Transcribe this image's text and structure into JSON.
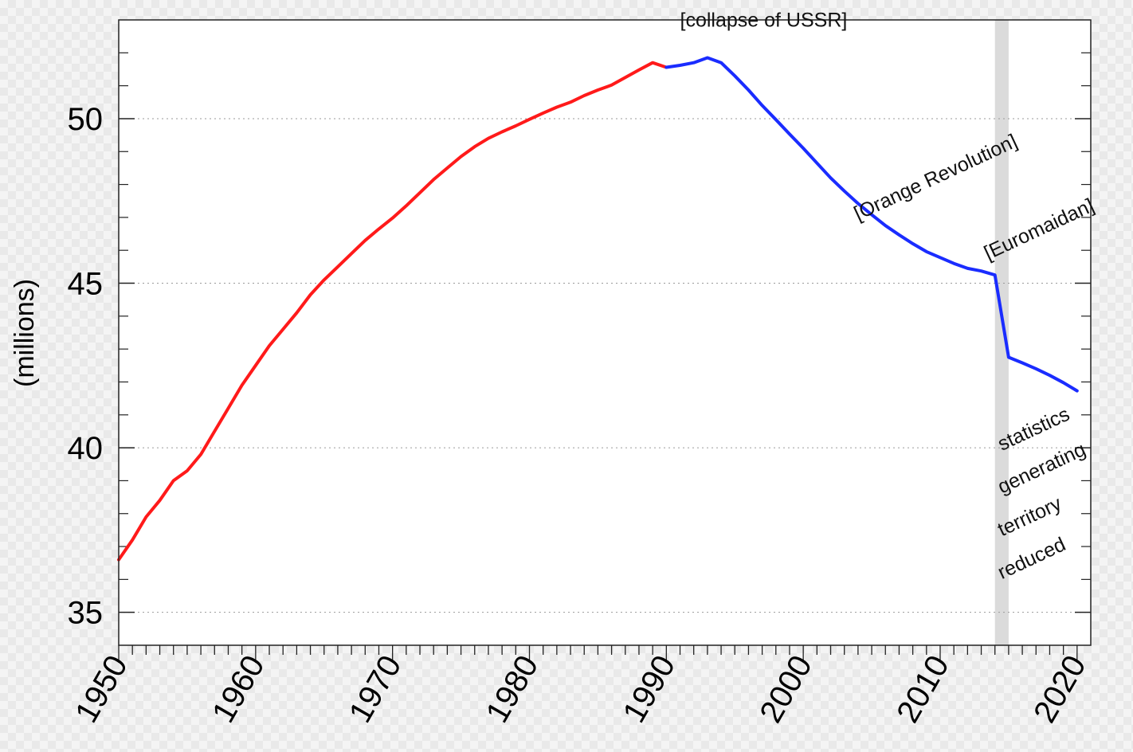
{
  "chart_data": {
    "type": "line",
    "ylabel": "(millions)",
    "xlabel": "",
    "title": "",
    "xlim": [
      1950,
      2021
    ],
    "ylim": [
      34,
      53
    ],
    "grid": "horizontal dotted at 35, 40, 45, 50",
    "x_ticks": [
      "1950",
      "1960",
      "1970",
      "1980",
      "1990",
      "2000",
      "2010",
      "2020"
    ],
    "y_ticks": [
      "35",
      "40",
      "45",
      "50"
    ],
    "colors": {
      "before_1989": "#ff1a1a",
      "after_1989": "#1a2cff",
      "shade": "#cccccc"
    },
    "series": [
      {
        "color": "#ff1a1a",
        "x": [
          1950,
          1951,
          1952,
          1953,
          1954,
          1955,
          1956,
          1957,
          1958,
          1959,
          1960,
          1961,
          1962,
          1963,
          1964,
          1965,
          1966,
          1967,
          1968,
          1969,
          1970,
          1971,
          1972,
          1973,
          1974,
          1975,
          1976,
          1977,
          1978,
          1979,
          1980,
          1981,
          1982,
          1983,
          1984,
          1985,
          1986,
          1987,
          1988,
          1989,
          1990
        ],
        "y": [
          36.6,
          37.2,
          37.9,
          38.4,
          39.0,
          39.3,
          39.8,
          40.5,
          41.2,
          41.9,
          42.5,
          43.1,
          43.6,
          44.1,
          44.65,
          45.1,
          45.5,
          45.9,
          46.3,
          46.65,
          46.98,
          47.35,
          47.75,
          48.15,
          48.5,
          48.85,
          49.15,
          49.4,
          49.6,
          49.78,
          49.98,
          50.17,
          50.35,
          50.5,
          50.7,
          50.87,
          51.02,
          51.25,
          51.48,
          51.7,
          51.56
        ]
      },
      {
        "color": "#1a2cff",
        "x": [
          1990,
          1991,
          1992,
          1993,
          1994,
          1995,
          1996,
          1997,
          1998,
          1999,
          2000,
          2001,
          2002,
          2003,
          2004,
          2005,
          2006,
          2007,
          2008,
          2009,
          2010,
          2011,
          2012,
          2013,
          2014,
          2015,
          2016,
          2017,
          2018,
          2019,
          2020
        ],
        "y": [
          51.56,
          51.62,
          51.7,
          51.85,
          51.7,
          51.3,
          50.87,
          50.4,
          49.97,
          49.53,
          49.1,
          48.65,
          48.2,
          47.8,
          47.42,
          47.08,
          46.75,
          46.47,
          46.2,
          45.96,
          45.78,
          45.6,
          45.45,
          45.37,
          45.25,
          42.75,
          42.58,
          42.4,
          42.2,
          41.98,
          41.73
        ]
      }
    ],
    "shaded_region": [
      2014,
      2015
    ],
    "annotations": [
      {
        "text": "[collapse of USSR]",
        "x": 1991,
        "y": 52.8,
        "rotation": 0
      },
      {
        "text": "[Orange Revolution]",
        "x": 2004,
        "y": 46.9,
        "rotation": -25
      },
      {
        "text": "[Euromaidan]",
        "x": 2013.5,
        "y": 45.7,
        "rotation": -25
      },
      {
        "text": "statistics",
        "x": 2014.5,
        "y": 39.9,
        "rotation": -25
      },
      {
        "text": "generating",
        "x": 2014.5,
        "y": 38.6,
        "rotation": -25
      },
      {
        "text": "territory",
        "x": 2014.5,
        "y": 37.3,
        "rotation": -25
      },
      {
        "text": "reduced",
        "x": 2014.5,
        "y": 36.0,
        "rotation": -25
      }
    ]
  }
}
